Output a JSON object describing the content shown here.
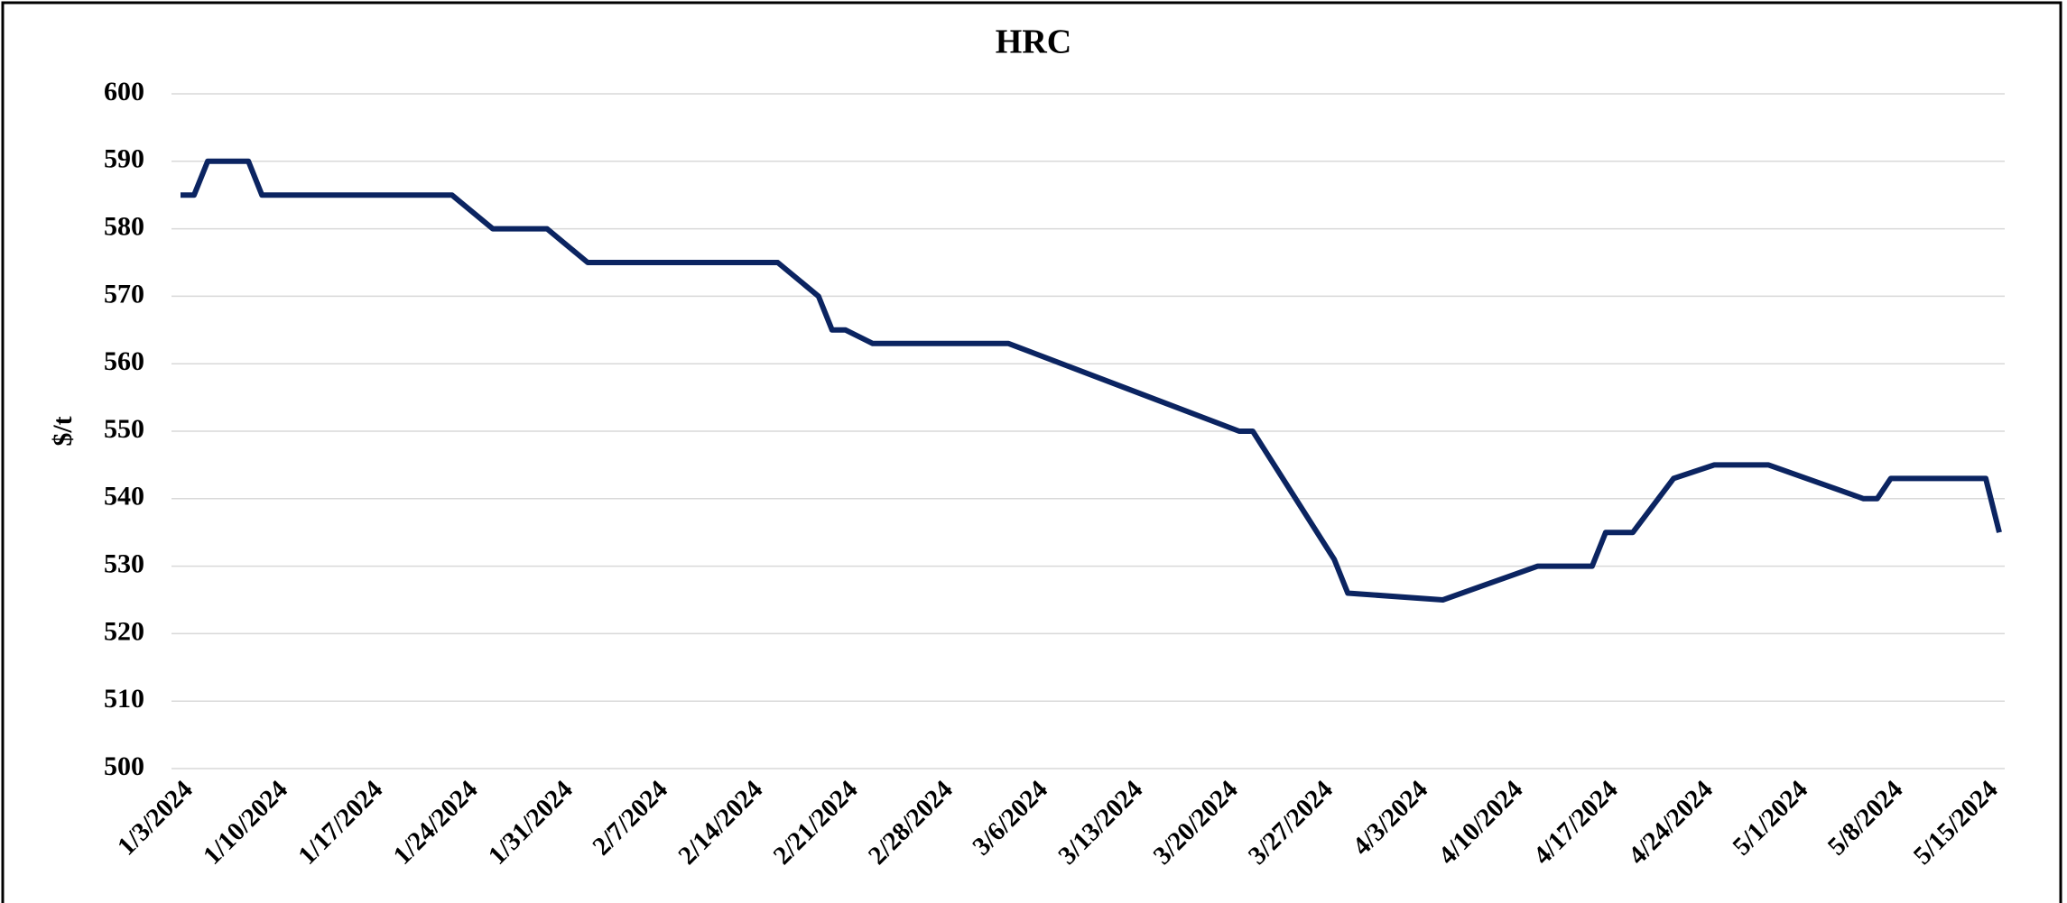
{
  "chart_data": {
    "type": "line",
    "title": "HRC",
    "y_label": "$/t",
    "x": [
      "1/3/2024",
      "1/4/2024",
      "1/5/2024",
      "1/8/2024",
      "1/9/2024",
      "1/23/2024",
      "1/26/2024",
      "1/30/2024",
      "2/2/2024",
      "2/16/2024",
      "2/19/2024",
      "2/20/2024",
      "2/21/2024",
      "2/23/2024",
      "3/4/2024",
      "3/21/2024",
      "3/22/2024",
      "3/28/2024",
      "3/29/2024",
      "4/5/2024",
      "4/12/2024",
      "4/16/2024",
      "4/17/2024",
      "4/19/2024",
      "4/22/2024",
      "4/25/2024",
      "4/29/2024",
      "5/6/2024",
      "5/7/2024",
      "5/8/2024",
      "5/15/2024",
      "5/16/2024"
    ],
    "series": [
      {
        "name": "HRC",
        "color": "#0b2461",
        "values": [
          585,
          585,
          590,
          590,
          585,
          585,
          580,
          580,
          575,
          575,
          570,
          565,
          565,
          563,
          563,
          550,
          550,
          531,
          526,
          525,
          530,
          530,
          535,
          535,
          543,
          545,
          545,
          540,
          540,
          543,
          543,
          535
        ]
      }
    ],
    "xlim": [
      "1/3/2024",
      "5/16/2024"
    ],
    "xticks": [
      "1/3/2024",
      "1/10/2024",
      "1/17/2024",
      "1/24/2024",
      "1/31/2024",
      "2/7/2024",
      "2/14/2024",
      "2/21/2024",
      "2/28/2024",
      "3/6/2024",
      "3/13/2024",
      "3/20/2024",
      "3/27/2024",
      "4/3/2024",
      "4/10/2024",
      "4/17/2024",
      "4/24/2024",
      "5/1/2024",
      "5/8/2024",
      "5/15/2024"
    ],
    "ylim": [
      500,
      600
    ],
    "yticks": [
      500,
      510,
      520,
      530,
      540,
      550,
      560,
      570,
      580,
      590,
      600
    ],
    "grid": true
  }
}
